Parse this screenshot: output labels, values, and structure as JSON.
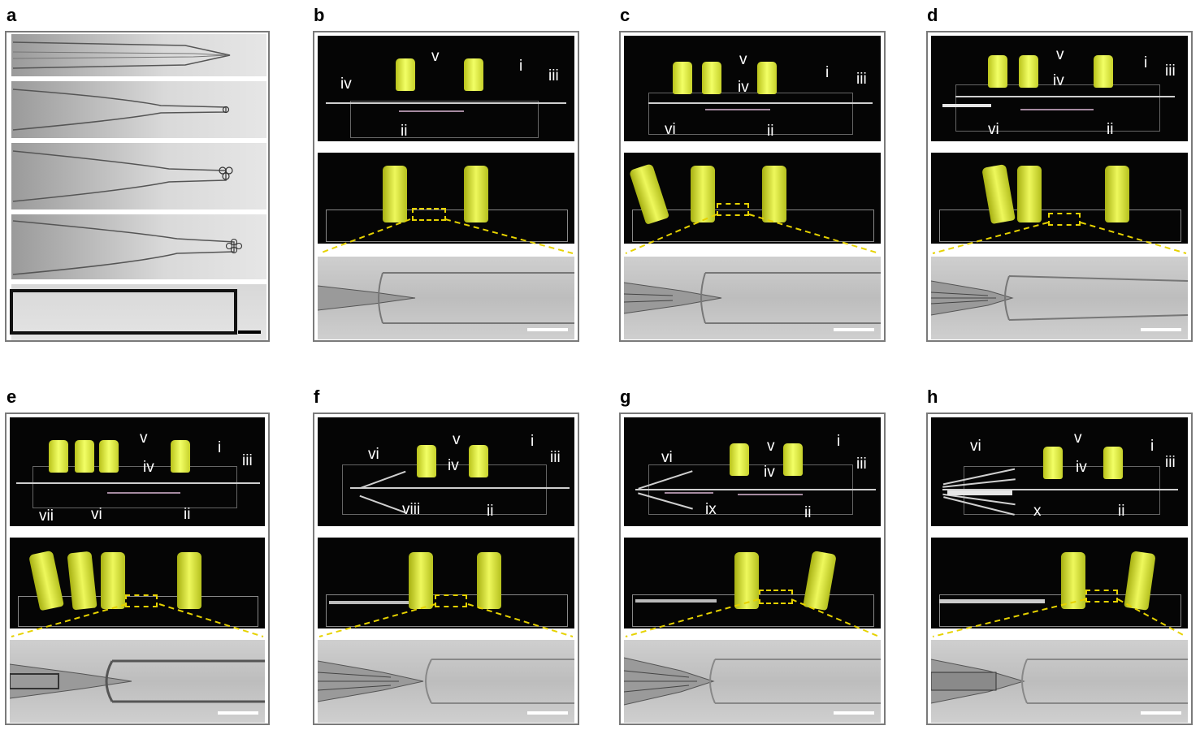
{
  "panels": [
    {
      "id": "a",
      "label": "a"
    },
    {
      "id": "b",
      "label": "b",
      "annotations": [
        "v",
        "i",
        "iii",
        "iv",
        "ii"
      ]
    },
    {
      "id": "c",
      "label": "c",
      "annotations": [
        "v",
        "i",
        "iii",
        "iv",
        "vi",
        "ii"
      ]
    },
    {
      "id": "d",
      "label": "d",
      "annotations": [
        "v",
        "i",
        "iii",
        "iv",
        "vi",
        "ii"
      ]
    },
    {
      "id": "e",
      "label": "e",
      "annotations": [
        "v",
        "i",
        "iii",
        "iv",
        "vii",
        "vi",
        "ii"
      ]
    },
    {
      "id": "f",
      "label": "f",
      "annotations": [
        "vi",
        "v",
        "i",
        "iii",
        "iv",
        "viii",
        "ii"
      ]
    },
    {
      "id": "g",
      "label": "g",
      "annotations": [
        "vi",
        "v",
        "i",
        "iii",
        "iv",
        "ix",
        "ii"
      ]
    },
    {
      "id": "h",
      "label": "h",
      "annotations": [
        "vi",
        "v",
        "i",
        "iii",
        "iv",
        "x",
        "ii"
      ]
    }
  ],
  "colors": {
    "frame": "#7a7a7a",
    "dashed_highlight": "#e6d200",
    "hub_yellow": "#eef85c"
  }
}
